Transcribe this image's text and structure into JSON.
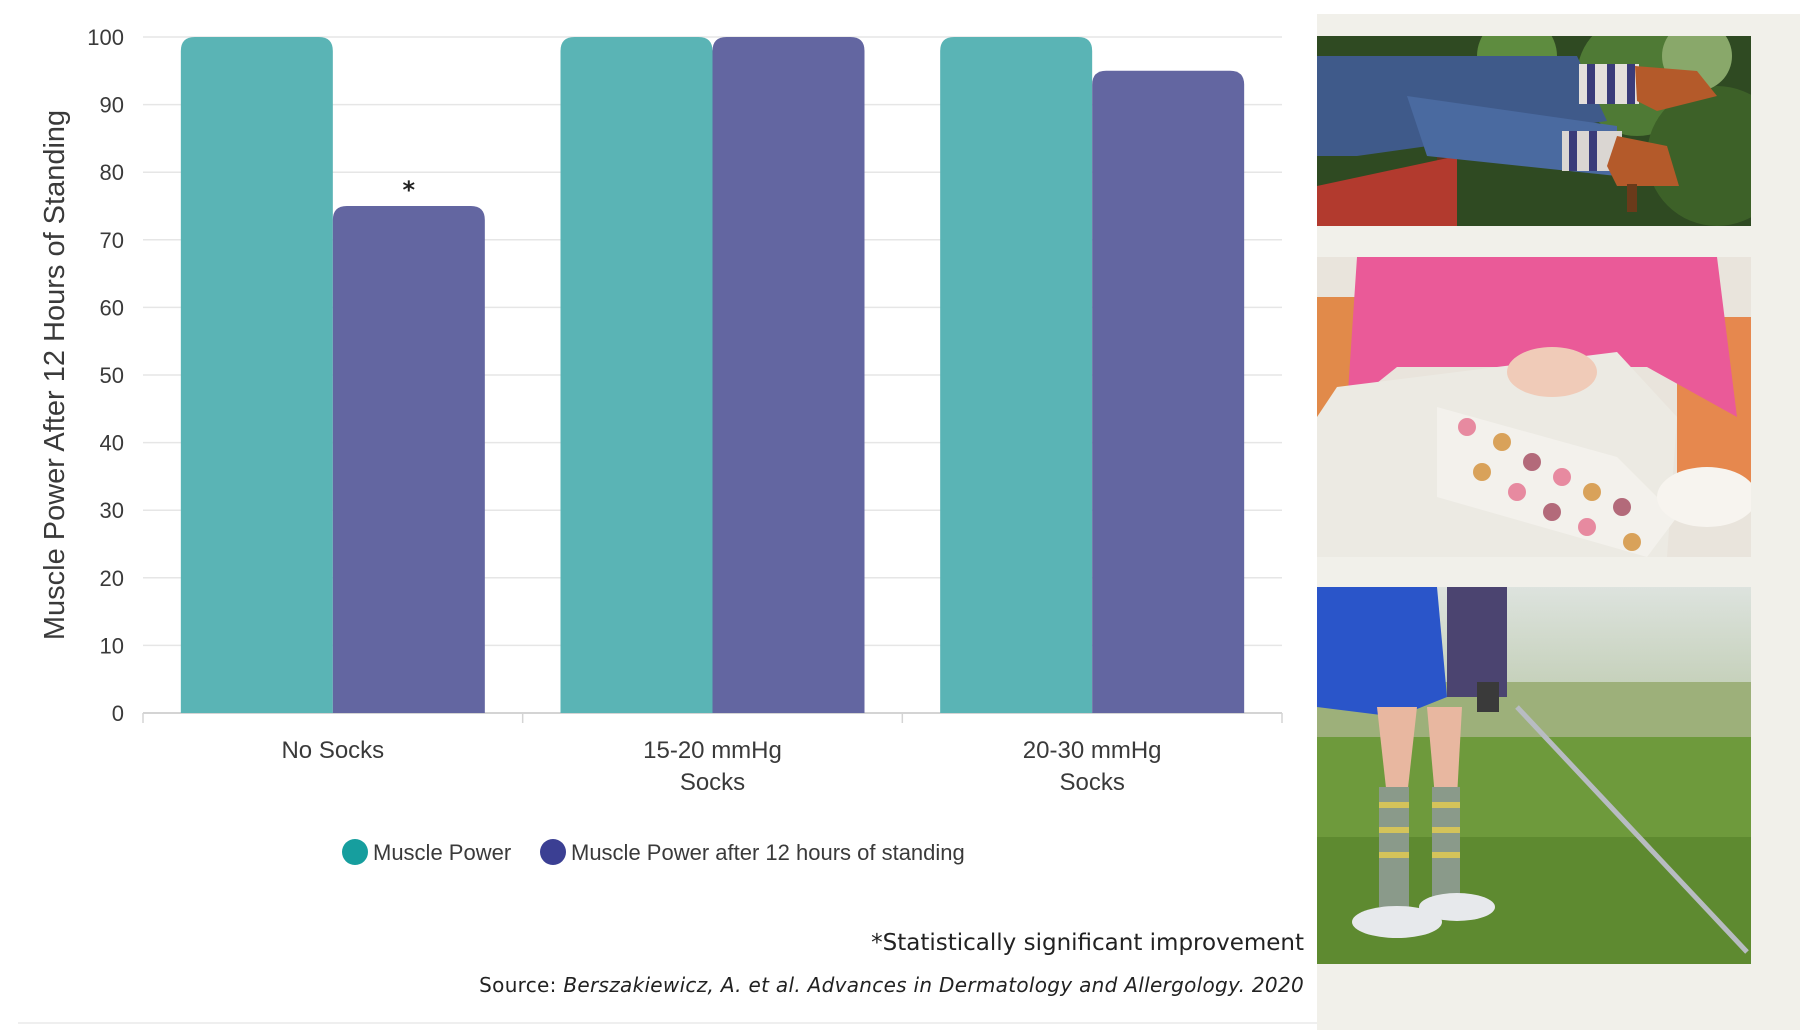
{
  "chart_data": {
    "type": "bar",
    "categories": [
      [
        "No Socks"
      ],
      [
        "15-20 mmHg",
        "Socks"
      ],
      [
        "20-30 mmHg",
        "Socks"
      ]
    ],
    "series": [
      {
        "name": "Muscle Power",
        "values": [
          100,
          100,
          100
        ],
        "color": "#5ab4b5"
      },
      {
        "name": "Muscle Power after 12 hours of standing",
        "values": [
          75,
          100,
          95
        ],
        "color": "#6366a1"
      }
    ],
    "annotations": [
      {
        "category_index": 0,
        "series_index": 1,
        "text": "*"
      }
    ],
    "ylabel": "Muscle Power After 12 Hours of Standing",
    "xlabel": "",
    "ylim": [
      0,
      100
    ],
    "yticks": [
      0,
      10,
      20,
      30,
      40,
      50,
      60,
      70,
      80,
      90,
      100
    ],
    "grid": true,
    "legend_position": "bottom"
  },
  "colors": {
    "legend_dot_teal": "#169e9e",
    "legend_dot_purple": "#3b3f93",
    "panel_background": "#f1f0ea"
  },
  "footnote": "*Statistically significant improvement",
  "source": {
    "prefix": "Source: ",
    "citation": "Berszakiewicz, A. et al. Advances in Dermatology and Allergology. 2020"
  },
  "photos": [
    {
      "icon": "socks-with-clogs-photo"
    },
    {
      "icon": "donut-print-socks-photo"
    },
    {
      "icon": "golfer-compression-socks-photo"
    }
  ]
}
